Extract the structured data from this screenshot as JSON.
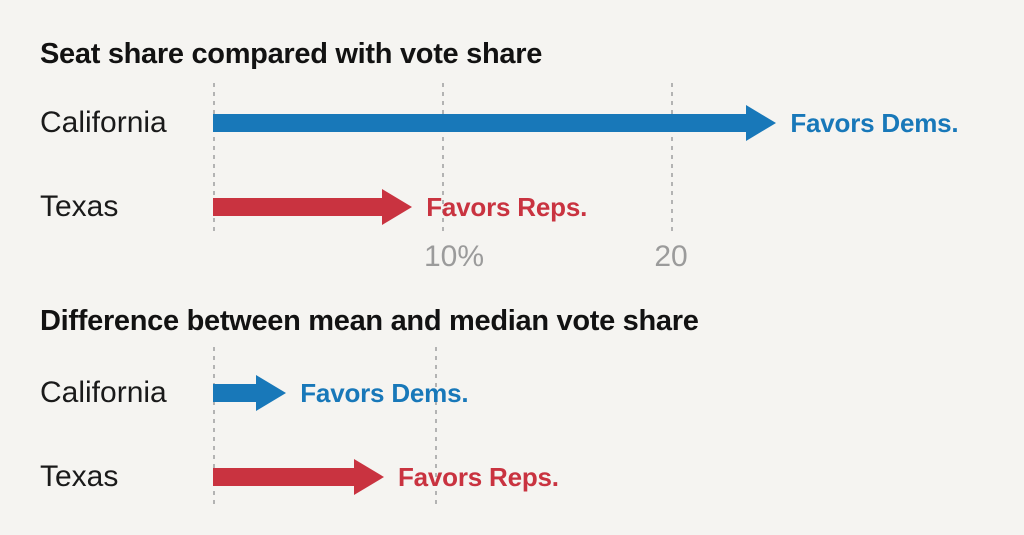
{
  "page": {
    "background": "#f5f4f1"
  },
  "colors": {
    "dem_blue": "#1878b9",
    "rep_red": "#c93340",
    "title_text": "#121212",
    "label_text": "#1a1a1a",
    "tick_text": "#9b9b9b",
    "gridline": "#b3b3b3"
  },
  "chart_data": [
    {
      "type": "bar",
      "variant": "horizontal-arrow-bars",
      "title": "Seat share compared with vote share",
      "xlabel": "",
      "ylabel": "",
      "unit": "percentage points",
      "xlim": [
        0,
        25
      ],
      "grid": true,
      "gridline_values": [
        0,
        10,
        20
      ],
      "x_ticks": [
        {
          "value": 10,
          "label": "10%"
        },
        {
          "value": 20,
          "label": "20"
        }
      ],
      "rows": [
        {
          "category": "California",
          "value": 24.6,
          "party": "dem",
          "annotation": "Favors Dems."
        },
        {
          "category": "Texas",
          "value": 8.7,
          "party": "rep",
          "annotation": "Favors Reps."
        }
      ]
    },
    {
      "type": "bar",
      "variant": "horizontal-arrow-bars",
      "title": "Difference between mean and median vote share",
      "xlabel": "",
      "ylabel": "",
      "unit": "percentage points",
      "xlim": [
        0,
        10
      ],
      "grid": true,
      "gridline_values": [
        0,
        10
      ],
      "x_ticks": [],
      "rows": [
        {
          "category": "California",
          "value": 3.3,
          "party": "dem",
          "annotation": "Favors Dems."
        },
        {
          "category": "Texas",
          "value": 7.7,
          "party": "rep",
          "annotation": "Favors Reps."
        }
      ]
    }
  ]
}
